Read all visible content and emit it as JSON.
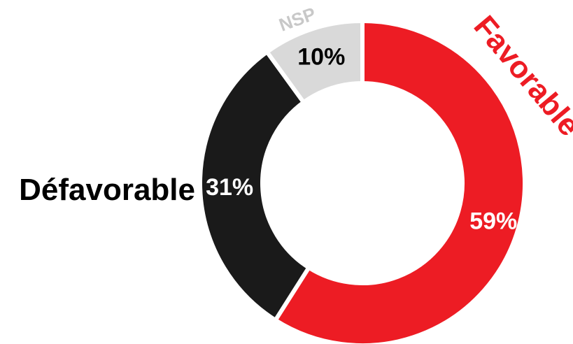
{
  "chart_data": {
    "type": "pie",
    "variant": "donut",
    "title": "",
    "slices": [
      {
        "label": "Favorable",
        "value": 59,
        "value_label": "59%",
        "color": "#ed1c24",
        "label_color": "#ed1c24",
        "value_text_color": "#ffffff"
      },
      {
        "label": "Défavorable",
        "value": 31,
        "value_label": "31%",
        "color": "#1a1a1a",
        "label_color": "#000000",
        "value_text_color": "#ffffff"
      },
      {
        "label": "NSP",
        "value": 10,
        "value_label": "10%",
        "color": "#d9d9d9",
        "label_color": "#c8c8c8",
        "value_text_color": "#000000"
      }
    ],
    "start_angle": "12 o'clock",
    "direction": "clockwise",
    "legend": "none"
  }
}
